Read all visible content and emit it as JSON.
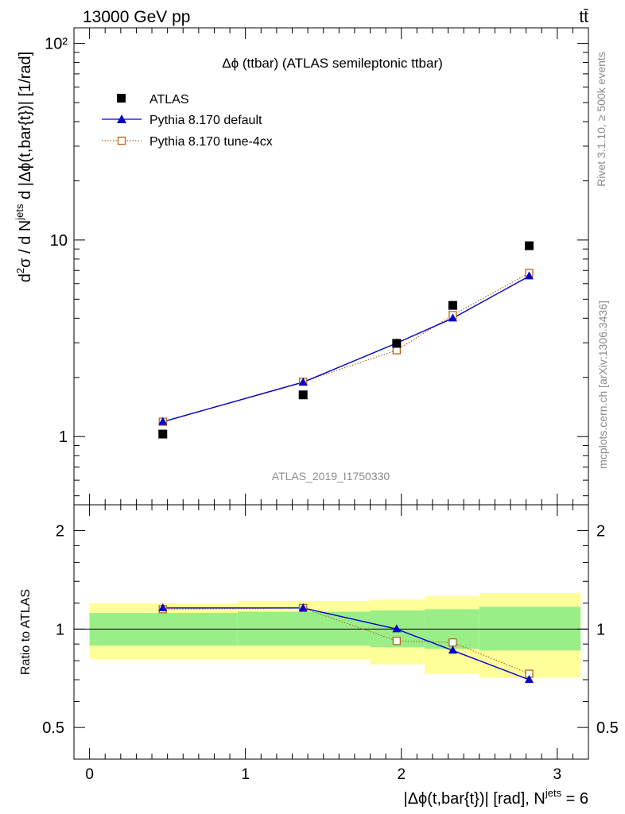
{
  "header": {
    "energy_label": "13000 GeV pp",
    "process_label": "tt̄"
  },
  "side_labels": {
    "rivet": "Rivet 3.1.10, ≥ 500k events",
    "source": "mcplots.cern.ch [arXiv:1306.3436]"
  },
  "colors": {
    "atlas": "#000000",
    "pythia_default": "#0000cc",
    "pythia_tune4cx": "#b5651d",
    "band_stat": "#99ee88",
    "band_total": "#ffff99"
  },
  "chart_data": [
    {
      "type": "scatter",
      "panel": "main",
      "title": "Δϕ (ttbar) (ATLAS semileptonic ttbar)",
      "watermark": "ATLAS_2019_I1750330",
      "ylabel": "d²σ / d N^jets d |Δϕ(t,bar{t})| [1/rad]",
      "yscale": "log",
      "ylim": [
        0.45,
        120
      ],
      "xlim": [
        -0.1,
        3.2
      ],
      "y_tick_labels": [
        "1",
        "10",
        "10²"
      ],
      "legend_position": "top-left",
      "x": [
        0.47,
        1.37,
        1.97,
        2.33,
        2.82
      ],
      "series": [
        {
          "name": "ATLAS",
          "marker": "filled-square",
          "values": [
            1.03,
            1.63,
            2.98,
            4.65,
            9.35
          ]
        },
        {
          "name": "Pythia 8.170 default",
          "marker": "filled-triangle",
          "line": "solid",
          "values": [
            1.19,
            1.89,
            2.99,
            4.0,
            6.55
          ]
        },
        {
          "name": "Pythia 8.170 tune-4cx",
          "marker": "open-square",
          "line": "dotted",
          "values": [
            1.19,
            1.9,
            2.75,
            4.15,
            6.8
          ]
        }
      ]
    },
    {
      "type": "scatter",
      "panel": "ratio",
      "ylabel": "Ratio to ATLAS",
      "ylim": [
        0.4,
        2.4
      ],
      "yscale": "log",
      "y_tick_labels": [
        "0.5",
        "1",
        "2"
      ],
      "xlabel": "|Δϕ(t,bar{t})| [rad], N^jets = 6",
      "x_tick_labels": [
        "0",
        "1",
        "2",
        "3"
      ],
      "xlim": [
        -0.1,
        3.2
      ],
      "bands": {
        "edges": [
          0.0,
          0.95,
          1.8,
          2.15,
          2.5,
          3.15
        ],
        "stat_low": [
          0.89,
          0.89,
          0.88,
          0.87,
          0.86
        ],
        "stat_high": [
          1.12,
          1.13,
          1.14,
          1.15,
          1.17
        ],
        "total_low": [
          0.81,
          0.81,
          0.78,
          0.73,
          0.71
        ],
        "total_high": [
          1.2,
          1.22,
          1.23,
          1.26,
          1.29
        ]
      },
      "x": [
        0.47,
        1.37,
        1.97,
        2.33,
        2.82
      ],
      "series": [
        {
          "name": "Pythia 8.170 default",
          "values": [
            1.16,
            1.16,
            1.0,
            0.86,
            0.7
          ]
        },
        {
          "name": "Pythia 8.170 tune-4cx",
          "values": [
            1.15,
            1.16,
            0.92,
            0.91,
            0.73
          ]
        }
      ]
    }
  ]
}
